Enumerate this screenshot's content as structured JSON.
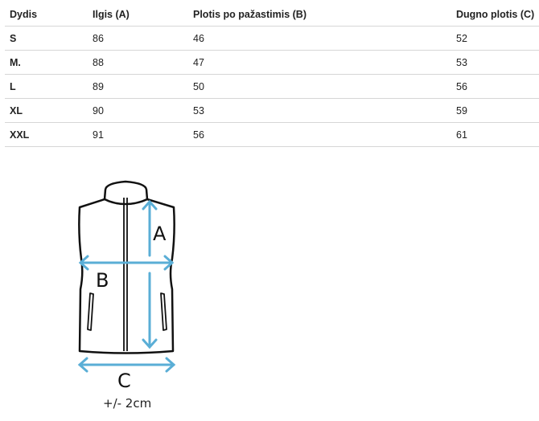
{
  "table": {
    "headers": [
      "Dydis",
      "Ilgis (A)",
      "Plotis po pažastimis (B)",
      "Dugno plotis (C)"
    ],
    "rows": [
      [
        "S",
        "86",
        "46",
        "52"
      ],
      [
        "M.",
        "88",
        "47",
        "53"
      ],
      [
        "L",
        "89",
        "50",
        "56"
      ],
      [
        "XL",
        "90",
        "53",
        "59"
      ],
      [
        "XXL",
        "91",
        "56",
        "61"
      ]
    ]
  },
  "diagram": {
    "label_a": "A",
    "label_b": "B",
    "label_c": "C",
    "tolerance": "+/- 2cm",
    "arrow_color": "#5aaed6"
  }
}
